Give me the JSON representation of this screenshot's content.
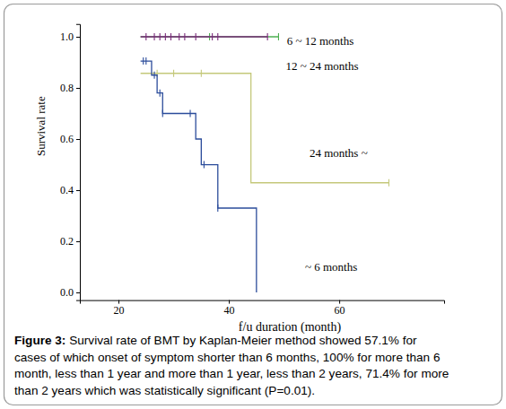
{
  "chart_data": {
    "type": "line",
    "line_style": "step",
    "marker": "tick",
    "grid": false,
    "x_label": "f/u duration (month)",
    "y_label": "Survival rate",
    "xlim": [
      13,
      79
    ],
    "xticks": [
      20,
      40,
      60
    ],
    "ylim": [
      -0.03,
      1.05
    ],
    "yticks": [
      {
        "value": 0,
        "label": "0.0"
      },
      {
        "value": 0.2,
        "label": "0.2"
      },
      {
        "value": 0.4,
        "label": "0.4"
      },
      {
        "value": 0.6,
        "label": "0.6"
      },
      {
        "value": 0.8,
        "label": "0.8"
      },
      {
        "value": 1,
        "label": "1.0"
      }
    ],
    "series": [
      {
        "color": "#4caf50",
        "x": [
          24,
          49
        ],
        "values": [
          1,
          1
        ],
        "censored": {
          "x": [
            36.5,
            49
          ],
          "values": [
            1,
            1
          ]
        }
      },
      {
        "color": "#7a2a7a",
        "x": [
          24,
          47
        ],
        "values": [
          1,
          1
        ],
        "censored": {
          "x": [
            25,
            26.5,
            27.5,
            28.5,
            29.5,
            31,
            32,
            34,
            37,
            38,
            47
          ],
          "values": [
            1,
            1,
            1,
            1,
            1,
            1,
            1,
            1,
            1,
            1,
            1
          ]
        }
      },
      {
        "color": "#c4c87a",
        "x": [
          24,
          44,
          69
        ],
        "values": [
          0.857,
          0.429,
          0.429
        ],
        "censored": {
          "x": [
            27,
            30,
            35,
            69
          ],
          "values": [
            0.857,
            0.857,
            0.857,
            0.429
          ]
        }
      },
      {
        "color": "#2b4c9b",
        "x": [
          24,
          26,
          27,
          28,
          34,
          35,
          38,
          45
        ],
        "values": [
          0.905,
          0.85,
          0.78,
          0.7,
          0.6,
          0.5,
          0.33,
          0
        ],
        "censored": {
          "x": [
            24.5,
            25,
            26.5,
            27.5,
            28,
            33,
            35.5,
            38
          ],
          "values": [
            0.905,
            0.905,
            0.85,
            0.78,
            0.7,
            0.7,
            0.5,
            0.33
          ]
        }
      }
    ],
    "annotations": [
      {
        "text": "6 ~ 12 months",
        "x": 50.5,
        "y": 0.985
      },
      {
        "text": "12 ~ 24 months",
        "x": 50.3,
        "y": 0.885
      },
      {
        "text": "24 months ~",
        "x": 54.6,
        "y": 0.545
      },
      {
        "text": "~ 6 months",
        "x": 53.8,
        "y": 0.1
      }
    ],
    "caption": {
      "label": "Figure 3:",
      "lines": [
        " Survival rate of BMT by Kaplan-Meier method showed 57.1% for",
        "cases of which onset of symptom shorter than 6 months, 100% for more than 6",
        "month, less than 1 year and more than 1 year, less than 2 years, 71.4% for more",
        "than 2 years which was statistically significant (P=0.01)."
      ]
    }
  }
}
